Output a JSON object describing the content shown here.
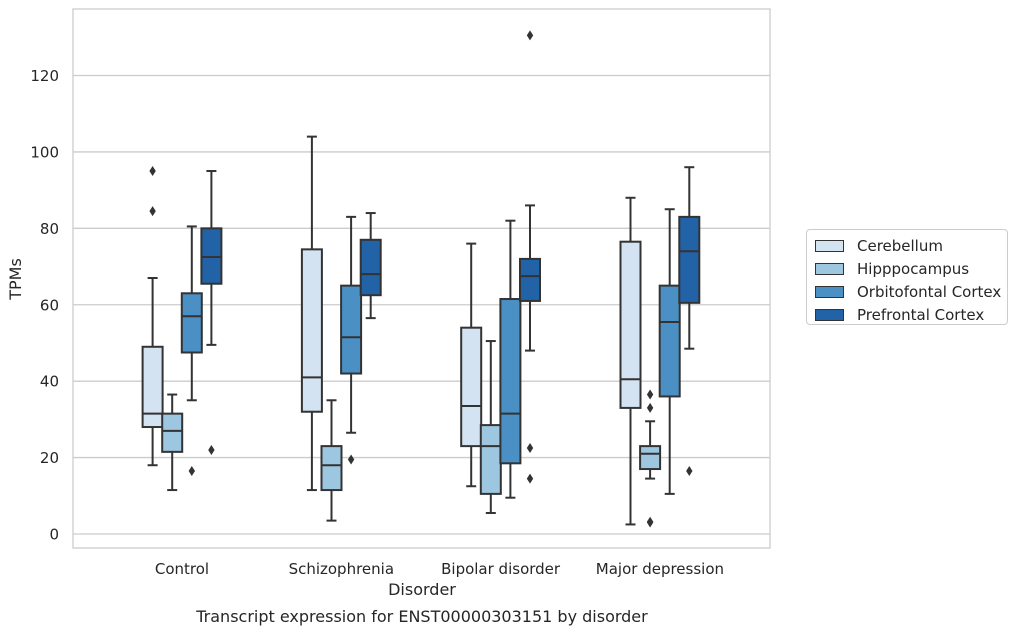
{
  "chart_data": {
    "type": "box",
    "caption": "Transcript expression for ENST00000303151 by disorder",
    "xlabel": "Disorder",
    "ylabel": "TPMs",
    "ylim": [
      -3.5,
      137
    ],
    "yticks": [
      0,
      20,
      40,
      60,
      80,
      100,
      120
    ],
    "grid": "horizontal",
    "legend_position": "right",
    "categories": [
      "Control",
      "Schizophrenia",
      "Bipolar disorder",
      "Major depression"
    ],
    "series": [
      {
        "name": "Cerebellum",
        "color": "#d4e3f1",
        "boxes": [
          {
            "whisker_low": 18,
            "q1": 28,
            "median": 31.5,
            "q3": 49,
            "whisker_high": 67,
            "outliers": [
              84.5,
              95
            ]
          },
          {
            "whisker_low": 11.5,
            "q1": 32,
            "median": 41,
            "q3": 74.5,
            "whisker_high": 104,
            "outliers": []
          },
          {
            "whisker_low": 12.5,
            "q1": 23,
            "median": 33.5,
            "q3": 54,
            "whisker_high": 76,
            "outliers": []
          },
          {
            "whisker_low": 2.5,
            "q1": 33,
            "median": 40.5,
            "q3": 76.5,
            "whisker_high": 88,
            "outliers": []
          }
        ]
      },
      {
        "name": "Hipppocampus",
        "color": "#9dc6e0",
        "boxes": [
          {
            "whisker_low": 11.5,
            "q1": 21.5,
            "median": 27,
            "q3": 31.5,
            "whisker_high": 36.5,
            "outliers": []
          },
          {
            "whisker_low": 3.5,
            "q1": 11.5,
            "median": 18,
            "q3": 23,
            "whisker_high": 35,
            "outliers": []
          },
          {
            "whisker_low": 5.5,
            "q1": 10.5,
            "median": 23,
            "q3": 28.5,
            "whisker_high": 50.5,
            "outliers": []
          },
          {
            "whisker_low": 14.5,
            "q1": 17,
            "median": 21,
            "q3": 23,
            "whisker_high": 29.5,
            "outliers": [
              3,
              3.2,
              33,
              36.5
            ]
          }
        ]
      },
      {
        "name": "Orbitofontal Cortex",
        "color": "#4a90c4",
        "boxes": [
          {
            "whisker_low": 35,
            "q1": 47.5,
            "median": 57,
            "q3": 63,
            "whisker_high": 80.5,
            "outliers": [
              16.5
            ]
          },
          {
            "whisker_low": 26.5,
            "q1": 42,
            "median": 51.5,
            "q3": 65,
            "whisker_high": 83,
            "outliers": [
              19.5
            ]
          },
          {
            "whisker_low": 9.5,
            "q1": 18.5,
            "median": 31.5,
            "q3": 61.5,
            "whisker_high": 82,
            "outliers": []
          },
          {
            "whisker_low": 10.5,
            "q1": 36,
            "median": 55.5,
            "q3": 65,
            "whisker_high": 85,
            "outliers": []
          }
        ]
      },
      {
        "name": "Prefrontal Cortex",
        "color": "#2262a6",
        "boxes": [
          {
            "whisker_low": 49.5,
            "q1": 65.5,
            "median": 72.5,
            "q3": 80,
            "whisker_high": 95,
            "outliers": [
              22
            ]
          },
          {
            "whisker_low": 56.5,
            "q1": 62.5,
            "median": 68,
            "q3": 77,
            "whisker_high": 84,
            "outliers": []
          },
          {
            "whisker_low": 48,
            "q1": 61,
            "median": 67.5,
            "q3": 72,
            "whisker_high": 86,
            "outliers": [
              14.5,
              22.5,
              130.5
            ]
          },
          {
            "whisker_low": 48.5,
            "q1": 60.5,
            "median": 74,
            "q3": 83,
            "whisker_high": 96,
            "outliers": [
              16.5
            ]
          }
        ]
      }
    ]
  }
}
